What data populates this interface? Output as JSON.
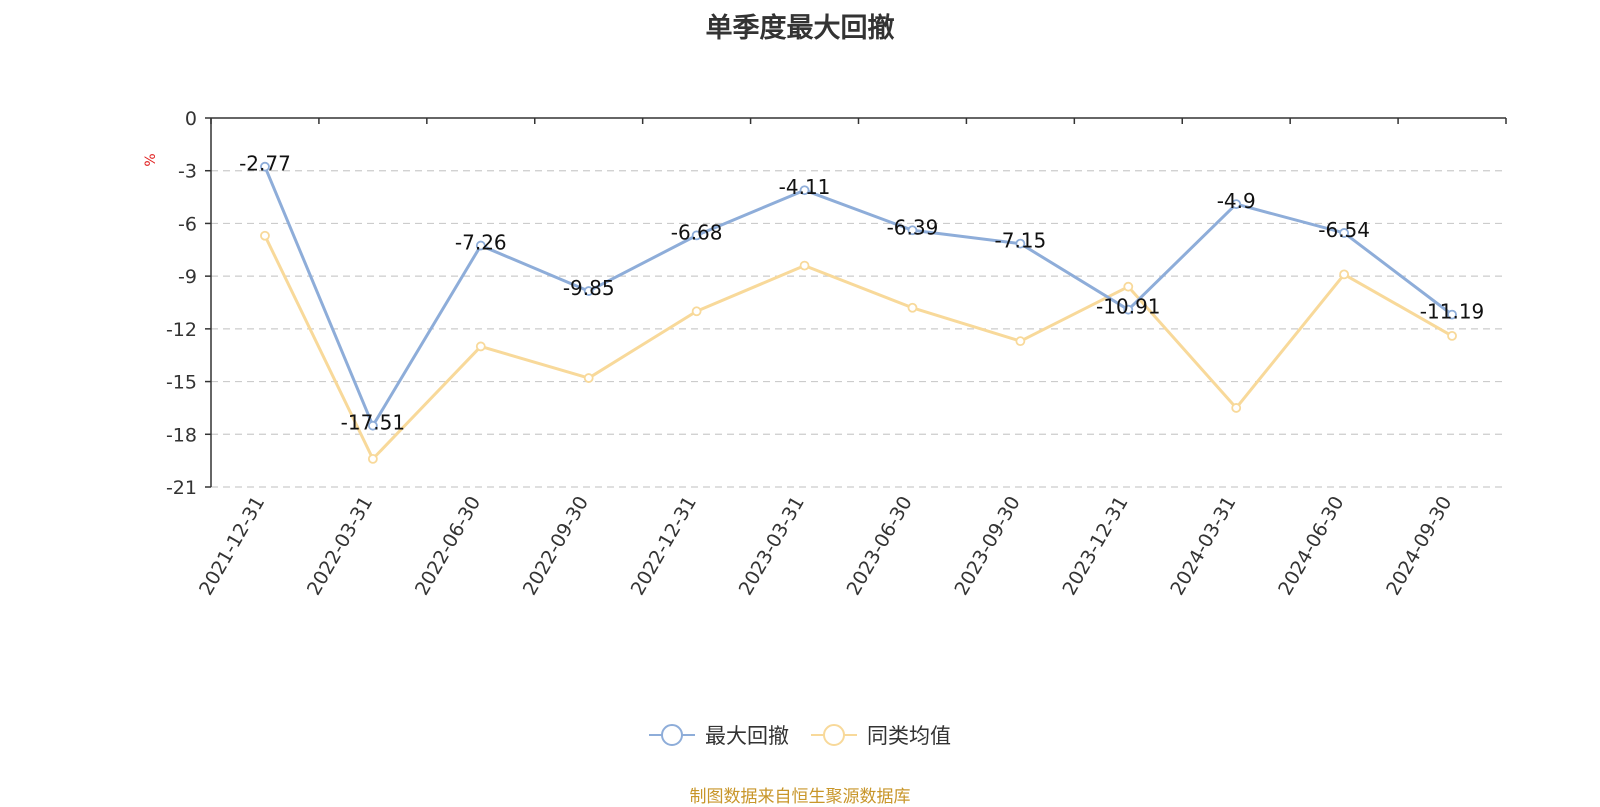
{
  "chart_data": {
    "type": "line",
    "title": "单季度最大回撤",
    "ylabel": "%",
    "ylim": [
      -21,
      0
    ],
    "yticks": [
      0,
      -3,
      -6,
      -9,
      -12,
      -15,
      -18,
      -21
    ],
    "categories": [
      "2021-12-31",
      "2022-03-31",
      "2022-06-30",
      "2022-09-30",
      "2022-12-31",
      "2023-03-31",
      "2023-06-30",
      "2023-09-30",
      "2023-12-31",
      "2024-03-31",
      "2024-06-30",
      "2024-09-30"
    ],
    "series": [
      {
        "name": "最大回撤",
        "color": "#8eadd9",
        "values": [
          -2.77,
          -17.51,
          -7.26,
          -9.85,
          -6.68,
          -4.11,
          -6.39,
          -7.15,
          -10.91,
          -4.9,
          -6.54,
          -11.19
        ],
        "labels": [
          "-2.77",
          "-17.51",
          "-7.26",
          "-9.85",
          "-6.68",
          "-4.11",
          "-6.39",
          "-7.15",
          "-10.91",
          "-4.9",
          "-6.54",
          "-11.19"
        ]
      },
      {
        "name": "同类均值",
        "color": "#f8d99a",
        "values": [
          -6.7,
          -19.4,
          -13.0,
          -14.8,
          -11.0,
          -8.4,
          -10.8,
          -12.7,
          -9.6,
          -16.5,
          -8.9,
          -12.4
        ]
      }
    ],
    "grid": true,
    "legend_position": "bottom-center"
  },
  "source_note": "制图数据来自恒生聚源数据库",
  "colors": {
    "axis": "#333333",
    "grid": "#cccccc",
    "unit": "#e02020",
    "source": "#c8962a"
  }
}
